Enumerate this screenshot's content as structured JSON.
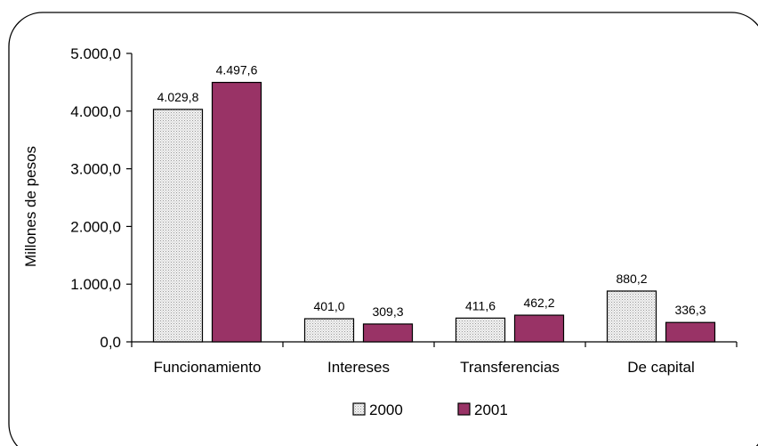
{
  "chart_data": {
    "type": "bar",
    "title": "",
    "xlabel": "",
    "ylabel": "Millones de pesos",
    "ylim": [
      0,
      5000
    ],
    "yticks": [
      "0,0",
      "1.000,0",
      "2.000,0",
      "3.000,0",
      "4.000,0",
      "5.000,0"
    ],
    "ytick_values": [
      0,
      1000,
      2000,
      3000,
      4000,
      5000
    ],
    "categories": [
      "Funcionamiento",
      "Intereses",
      "Transferencias",
      "De capital"
    ],
    "series": [
      {
        "name": "2000",
        "values": [
          4029.8,
          401.0,
          411.6,
          880.2
        ],
        "labels": [
          "4.029,8",
          "401,0",
          "411,6",
          "880,2"
        ],
        "color": "#e6e6e6"
      },
      {
        "name": "2001",
        "values": [
          4497.6,
          309.3,
          462.2,
          336.3
        ],
        "labels": [
          "4.497,6",
          "309,3",
          "462,2",
          "336,3"
        ],
        "color": "#993366"
      }
    ],
    "grid": false,
    "legend": "bottom"
  }
}
